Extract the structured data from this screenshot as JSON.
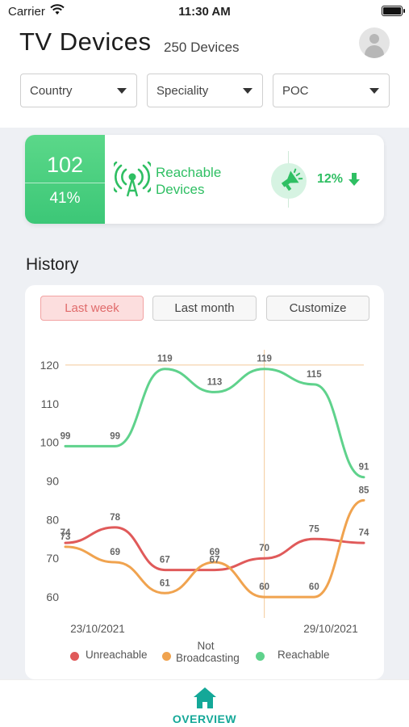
{
  "status": {
    "carrier": "Carrier",
    "time": "11:30 AM"
  },
  "header": {
    "title": "TV Devices",
    "subtitle": "250 Devices"
  },
  "filters": [
    {
      "label": "Country"
    },
    {
      "label": "Speciality"
    },
    {
      "label": "POC"
    }
  ],
  "summary": {
    "count": "102",
    "percent": "41%",
    "label_line1": "Reachable",
    "label_line2": "Devices",
    "trend": "12%",
    "trend_direction": "down",
    "accent": "#2fbf63"
  },
  "history": {
    "title": "History",
    "ranges": [
      {
        "label": "Last week",
        "active": true
      },
      {
        "label": "Last month",
        "active": false
      },
      {
        "label": "Customize",
        "active": false
      }
    ]
  },
  "chart_data": {
    "type": "line",
    "y_ticks": [
      60,
      70,
      80,
      90,
      100,
      110,
      120
    ],
    "ylim": [
      55,
      125
    ],
    "x_start_label": "23/10/2021",
    "x_end_label": "29/10/2021",
    "reference_line_y": 120,
    "crosshair_index": 4,
    "series": [
      {
        "name": "Unreachable",
        "color": "#e05a5a",
        "values": [
          74,
          78,
          67,
          67,
          70,
          75,
          74
        ]
      },
      {
        "name": "Not Broadcasting",
        "color": "#f0a34f",
        "values": [
          73,
          69,
          61,
          69,
          60,
          60,
          85
        ]
      },
      {
        "name": "Reachable",
        "color": "#5fd28c",
        "values": [
          99,
          99,
          119,
          113,
          119,
          115,
          91
        ]
      }
    ]
  },
  "nav": {
    "overview": "OVERVIEW",
    "accent": "#14a898"
  }
}
